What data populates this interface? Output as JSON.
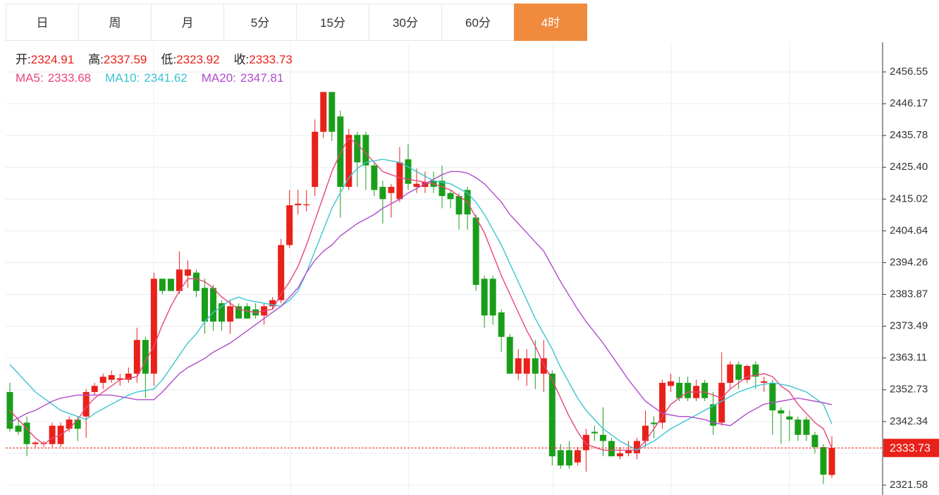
{
  "chart_data": {
    "type": "candlestick",
    "tabs": [
      "日",
      "周",
      "月",
      "5分",
      "15分",
      "30分",
      "60分",
      "4时"
    ],
    "active_tab": 7,
    "ohlc_labels": [
      "开:",
      "高:",
      "低:",
      "收:"
    ],
    "up_color": "#e8211a",
    "down_color": "#1a9e1a",
    "grid": true,
    "ylim": [
      2318.36,
      2466.22
    ],
    "yticks": [
      2321.58,
      2331.96,
      2342.34,
      2352.73,
      2363.11,
      2373.49,
      2383.87,
      2394.26,
      2404.64,
      2415.02,
      {
        "value": 2425.4,
        "label": "2425.40"
      },
      2435.78,
      2446.17,
      2456.55
    ],
    "open": [
      2352,
      2341,
      2342,
      2335,
      2335,
      2335,
      2335,
      2340,
      2343,
      2344,
      2352,
      2355,
      2356,
      2356,
      2356,
      2358,
      2369,
      2358,
      2389,
      2389,
      2385,
      2390,
      2391,
      2386,
      2386,
      2381,
      2375,
      2380,
      2380,
      2379,
      2377,
      2380,
      2382,
      2400,
      2413,
      2413,
      2419,
      2437,
      2450,
      2442,
      2419,
      2436,
      2436,
      2426,
      2419,
      2417,
      2415,
      2428,
      2419,
      2419,
      2421,
      2421,
      2417,
      2416,
      2418,
      2409,
      2389,
      2389,
      2378,
      2370,
      2358,
      2358,
      2363,
      2358,
      2358,
      2333,
      2333,
      2329,
      2333,
      2339,
      2338,
      2336,
      2331,
      2332,
      2332,
      2336,
      2342,
      2342,
      2354,
      2355,
      2355,
      2350,
      2355,
      2348,
      2342,
      2355,
      2361,
      2356,
      2361,
      2355,
      2355,
      2346,
      2344,
      2343,
      2343,
      2338,
      2334,
      2324.91
    ],
    "high": [
      2355,
      2343,
      2344,
      2336,
      2336,
      2342,
      2342,
      2344,
      2344,
      2353,
      2355,
      2358,
      2359,
      2358,
      2360,
      2373,
      2370,
      2391,
      2389,
      2389,
      2398,
      2395,
      2392,
      2389,
      2387,
      2382,
      2382,
      2381,
      2381,
      2381,
      2381,
      2383,
      2402,
      2418,
      2418,
      2418,
      2441,
      2450,
      2450,
      2444,
      2438,
      2437,
      2437,
      2427,
      2421,
      2420,
      2432,
      2433,
      2425,
      2424,
      2424,
      2426,
      2418,
      2417,
      2419,
      2410,
      2390,
      2390,
      2379,
      2371,
      2366,
      2366,
      2369,
      2369,
      2359,
      2335,
      2336,
      2334,
      2340,
      2341,
      2347,
      2337,
      2334,
      2336,
      2337,
      2346,
      2344,
      2356,
      2358,
      2357,
      2357,
      2356,
      2356,
      2352,
      2365,
      2362,
      2362,
      2361,
      2362,
      2357,
      2356,
      2347,
      2346,
      2344,
      2344,
      2339,
      2335,
      2337.59
    ],
    "low": [
      2339,
      2338,
      2331,
      2334,
      2334,
      2334,
      2334,
      2339,
      2336,
      2337,
      2351,
      2353,
      2355,
      2354,
      2355,
      2355,
      2350,
      2354,
      2384,
      2385,
      2384,
      2386,
      2383,
      2371,
      2372,
      2372,
      2371,
      2376,
      2376,
      2376,
      2374,
      2379,
      2381,
      2399,
      2410,
      2411,
      2416,
      2435,
      2434,
      2409,
      2418,
      2419,
      2418,
      2416,
      2407,
      2409,
      2414,
      2418,
      2417,
      2417,
      2417,
      2412,
      2412,
      2405,
      2405,
      2385,
      2373,
      2374,
      2365,
      2358,
      2356,
      2354,
      2353,
      2352,
      2328,
      2327,
      2327,
      2328,
      2326,
      2336,
      2331,
      2331,
      2330,
      2331,
      2330,
      2334,
      2337,
      2340,
      2352,
      2349,
      2349,
      2349,
      2349,
      2338,
      2341,
      2353,
      2353,
      2355,
      2353,
      2352,
      2338,
      2335,
      2336,
      2336,
      2336,
      2332,
      2322,
      2323.92
    ],
    "close": [
      2340,
      2339,
      2335,
      2335.5,
      2335.3,
      2341,
      2341,
      2343,
      2340,
      2352,
      2354,
      2357,
      2357.5,
      2356.5,
      2358,
      2369,
      2358,
      2389,
      2385,
      2385,
      2392,
      2392,
      2385,
      2375,
      2375,
      2375,
      2380,
      2376,
      2376,
      2377,
      2380,
      2382,
      2400,
      2413,
      2413.5,
      2413.3,
      2437,
      2450,
      2437,
      2419,
      2436,
      2427,
      2426,
      2418,
      2415,
      2419,
      2427,
      2420,
      2420,
      2420.5,
      2419,
      2416,
      2415,
      2410,
      2410,
      2387,
      2377,
      2377,
      2370,
      2358,
      2363,
      2363,
      2358,
      2363,
      2331,
      2328,
      2328,
      2333,
      2338,
      2338.5,
      2336,
      2331,
      2332,
      2333,
      2336,
      2341,
      2341.5,
      2355,
      2355.5,
      2350,
      2350,
      2354,
      2350,
      2341,
      2355,
      2361,
      2356,
      2360.5,
      2357,
      2355.5,
      2346,
      2345,
      2343,
      2338,
      2338,
      2334,
      2325,
      2333.73
    ],
    "series": [
      {
        "name": "MA5:",
        "color": "#e8457a",
        "values": [
          2346,
          2343,
          2340,
          2337,
          2335,
          2337,
          2338,
          2340,
          2343,
          2347,
          2350,
          2352,
          2354,
          2356,
          2356.5,
          2357,
          2362,
          2367,
          2374,
          2380,
          2385,
          2389,
          2389,
          2388,
          2386,
          2383,
          2381,
          2379,
          2378.5,
          2378,
          2378.5,
          2379,
          2384,
          2388,
          2393,
          2400,
          2408,
          2416,
          2424,
          2430,
          2435,
          2433,
          2430,
          2427,
          2424,
          2423,
          2422,
          2421.5,
          2421,
          2420.5,
          2420,
          2419,
          2418,
          2416,
          2414,
          2409,
          2404,
          2397,
          2390,
          2384,
          2378,
          2372,
          2367,
          2361,
          2356,
          2350,
          2344,
          2339,
          2335,
          2334,
          2333,
          2333,
          2333,
          2333,
          2333,
          2336,
          2340,
          2344,
          2348,
          2350,
          2352,
          2352,
          2352,
          2351,
          2350,
          2353,
          2355,
          2357,
          2357.5,
          2358,
          2357,
          2354,
          2352,
          2348,
          2345,
          2342,
          2340,
          2333.68
        ]
      },
      {
        "name": "MA10:",
        "color": "#3cc4d2",
        "values": [
          2361,
          2358,
          2355,
          2352,
          2350,
          2348,
          2346,
          2345,
          2344,
          2343,
          2345,
          2346.5,
          2348,
          2349.5,
          2351,
          2352,
          2352.5,
          2353,
          2356,
          2360,
          2364,
          2368,
          2371,
          2375,
          2378,
          2380,
          2382,
          2383,
          2382,
          2381.5,
          2381,
          2380.5,
          2380,
          2382,
          2385,
          2391,
          2398,
          2405,
          2412,
          2417,
          2422,
          2425,
          2427,
          2427.5,
          2428,
          2427.5,
          2427,
          2425.5,
          2424,
          2422.5,
          2421,
          2420.5,
          2420,
          2418.5,
          2417,
          2414,
          2410,
          2405,
          2400,
          2394,
          2388,
          2382,
          2376,
          2371,
          2366,
          2360,
          2355,
          2350,
          2346,
          2343,
          2340,
          2338,
          2336,
          2334.5,
          2333,
          2334.5,
          2336,
          2338,
          2340,
          2341.5,
          2343,
          2344.5,
          2346,
          2347.5,
          2349,
          2350.5,
          2352,
          2353,
          2354,
          2354.5,
          2355,
          2354.5,
          2354,
          2353,
          2352,
          2350,
          2348,
          2341.62
        ]
      },
      {
        "name": "MA20:",
        "color": "#b04ccc",
        "values": [
          2342,
          2343.5,
          2345,
          2346,
          2347.5,
          2349,
          2350,
          2350.5,
          2351,
          2351,
          2351,
          2351,
          2351,
          2350.5,
          2350,
          2349.5,
          2349.5,
          2349.5,
          2352,
          2355,
          2358,
          2360,
          2361.5,
          2363,
          2365,
          2366.5,
          2368,
          2370,
          2372,
          2374,
          2376,
          2378,
          2380,
          2383,
          2386,
          2391,
          2395,
          2398,
          2400,
          2403,
          2405,
          2407,
          2408.5,
          2410,
          2412,
          2413.5,
          2415,
          2417,
          2418.5,
          2420,
          2421.5,
          2423,
          2424,
          2424,
          2423.5,
          2422,
          2420,
          2417,
          2414,
          2410,
          2407,
          2404,
          2401,
          2398,
          2393,
          2388,
          2383.5,
          2379,
          2375,
          2371.5,
          2368,
          2364,
          2360,
          2356,
          2352.5,
          2349,
          2347,
          2345,
          2344.5,
          2344,
          2344,
          2343.5,
          2343,
          2342,
          2341.5,
          2341,
          2343,
          2345,
          2346.5,
          2348,
          2348.5,
          2349,
          2349.5,
          2350,
          2349.5,
          2349,
          2348.5,
          2347.81
        ]
      }
    ]
  }
}
